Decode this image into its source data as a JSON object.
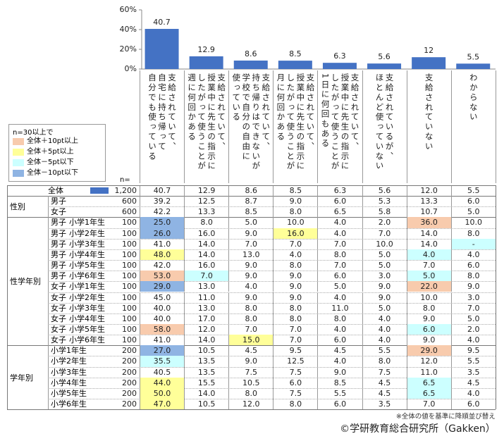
{
  "chart_data": {
    "type": "bar",
    "categories": [
      "支給されていて、\n自宅に持ち帰って\n自分でも使っている",
      "支給されていて、\n授業中に先生の指示に\nしたがって使うことが\n週に何回かある",
      "支給されていて、\n持ち帰りはできないが\n学校で自分の自由に\n使っている",
      "支給されていて、\n授業中に先生の指示に\nしたがって使うことが\n月に何回かある",
      "支給されていて、\n授業中に先生の指示に\nしたがって使うことが\n1日に何回もある",
      "支給されているが、\nほとんど使っていない",
      "支給されていない",
      "わからない"
    ],
    "values": [
      40.7,
      12.9,
      8.6,
      8.5,
      6.3,
      5.6,
      12.0,
      5.5
    ],
    "color": "#4472c4",
    "ylim": [
      0,
      60
    ],
    "yticks": [
      {
        "value": 0,
        "label": "0%"
      },
      {
        "value": 20,
        "label": "20%"
      },
      {
        "value": 40,
        "label": "40%"
      },
      {
        "value": 60,
        "label": "60%"
      }
    ]
  },
  "legend": {
    "title": "n=30以上で",
    "items": [
      {
        "label": "全体＋10pt以上",
        "color": "#f8cbad"
      },
      {
        "label": "全体＋5pt以上",
        "color": "#ffff99"
      },
      {
        "label": "全体－5pt以下",
        "color": "#ccffff"
      },
      {
        "label": "全体－10pt以下",
        "color": "#8fb4e3"
      }
    ]
  },
  "table": {
    "n_header": "n=",
    "total": {
      "label": "全体",
      "n": "1,200",
      "cells": [
        "40.7",
        "12.9",
        "8.6",
        "8.5",
        "6.3",
        "5.6",
        "12.0",
        "5.5"
      ]
    },
    "groups": [
      {
        "label": "性別",
        "rows": [
          {
            "labels": [
              "男子"
            ],
            "n": "600",
            "cells": [
              "39.2",
              "12.5",
              "8.7",
              "9.0",
              "6.0",
              "5.3",
              "13.3",
              "6.0"
            ]
          },
          {
            "labels": [
              "女子"
            ],
            "n": "600",
            "cells": [
              "42.2",
              "13.3",
              "8.5",
              "8.0",
              "6.5",
              "5.8",
              "10.7",
              "5.0"
            ]
          }
        ]
      },
      {
        "label": "性学年別",
        "rows": [
          {
            "labels": [
              "男子",
              "小学1年生"
            ],
            "n": "100",
            "cells": [
              "25.0",
              "8.0",
              "5.0",
              "10.0",
              "4.0",
              "2.0",
              "36.0",
              "10.0"
            ],
            "shade": [
              [
                0,
                3
              ],
              [
                6,
                0
              ]
            ]
          },
          {
            "labels": [
              "男子",
              "小学2年生"
            ],
            "n": "100",
            "cells": [
              "26.0",
              "16.0",
              "9.0",
              "16.0",
              "4.0",
              "7.0",
              "14.0",
              "8.0"
            ],
            "shade": [
              [
                0,
                3
              ],
              [
                3,
                1
              ]
            ]
          },
          {
            "labels": [
              "男子",
              "小学3年生"
            ],
            "n": "100",
            "cells": [
              "41.0",
              "14.0",
              "7.0",
              "7.0",
              "7.0",
              "10.0",
              "14.0",
              "-"
            ],
            "shade": [
              [
                7,
                2
              ]
            ]
          },
          {
            "labels": [
              "男子",
              "小学4年生"
            ],
            "n": "100",
            "cells": [
              "48.0",
              "14.0",
              "13.0",
              "4.0",
              "8.0",
              "5.0",
              "4.0",
              "4.0"
            ],
            "shade": [
              [
                0,
                1
              ],
              [
                6,
                2
              ]
            ]
          },
          {
            "labels": [
              "男子",
              "小学5年生"
            ],
            "n": "100",
            "cells": [
              "42.0",
              "16.0",
              "9.0",
              "8.0",
              "7.0",
              "5.0",
              "7.0",
              "6.0"
            ]
          },
          {
            "labels": [
              "男子",
              "小学6年生"
            ],
            "n": "100",
            "cells": [
              "53.0",
              "7.0",
              "9.0",
              "9.0",
              "6.0",
              "3.0",
              "5.0",
              "8.0"
            ],
            "shade": [
              [
                0,
                0
              ],
              [
                1,
                2
              ],
              [
                6,
                2
              ]
            ]
          },
          {
            "labels": [
              "女子",
              "小学1年生"
            ],
            "n": "100",
            "cells": [
              "29.0",
              "13.0",
              "4.0",
              "9.0",
              "5.0",
              "9.0",
              "22.0",
              "9.0"
            ],
            "shade": [
              [
                0,
                3
              ],
              [
                6,
                0
              ]
            ]
          },
          {
            "labels": [
              "女子",
              "小学2年生"
            ],
            "n": "100",
            "cells": [
              "45.0",
              "11.0",
              "9.0",
              "9.0",
              "4.0",
              "9.0",
              "10.0",
              "3.0"
            ]
          },
          {
            "labels": [
              "女子",
              "小学3年生"
            ],
            "n": "100",
            "cells": [
              "40.0",
              "13.0",
              "8.0",
              "8.0",
              "11.0",
              "5.0",
              "8.0",
              "7.0"
            ]
          },
          {
            "labels": [
              "女子",
              "小学4年生"
            ],
            "n": "100",
            "cells": [
              "40.0",
              "17.0",
              "8.0",
              "8.0",
              "8.0",
              "4.0",
              "9.0",
              "5.0"
            ]
          },
          {
            "labels": [
              "女子",
              "小学5年生"
            ],
            "n": "100",
            "cells": [
              "58.0",
              "12.0",
              "7.0",
              "7.0",
              "4.0",
              "4.0",
              "6.0",
              "2.0"
            ],
            "shade": [
              [
                0,
                0
              ],
              [
                6,
                2
              ]
            ]
          },
          {
            "labels": [
              "女子",
              "小学6年生"
            ],
            "n": "100",
            "cells": [
              "41.0",
              "14.0",
              "15.0",
              "7.0",
              "6.0",
              "4.0",
              "9.0",
              "4.0"
            ],
            "shade": [
              [
                2,
                1
              ]
            ]
          }
        ]
      },
      {
        "label": "学年別",
        "rows": [
          {
            "labels": [
              "小学1年生"
            ],
            "n": "200",
            "cells": [
              "27.0",
              "10.5",
              "4.5",
              "9.5",
              "4.5",
              "5.5",
              "29.0",
              "9.5"
            ],
            "shade": [
              [
                0,
                3
              ],
              [
                6,
                0
              ]
            ]
          },
          {
            "labels": [
              "小学2年生"
            ],
            "n": "200",
            "cells": [
              "35.5",
              "13.5",
              "9.0",
              "12.5",
              "4.0",
              "8.0",
              "12.0",
              "5.5"
            ],
            "shade": [
              [
                0,
                2
              ]
            ]
          },
          {
            "labels": [
              "小学3年生"
            ],
            "n": "200",
            "cells": [
              "40.5",
              "13.5",
              "7.5",
              "7.5",
              "9.0",
              "7.5",
              "11.0",
              "3.5"
            ]
          },
          {
            "labels": [
              "小学4年生"
            ],
            "n": "200",
            "cells": [
              "44.0",
              "15.5",
              "10.5",
              "6.0",
              "8.5",
              "4.5",
              "6.5",
              "4.5"
            ],
            "shade": [
              [
                0,
                1
              ],
              [
                6,
                2
              ]
            ]
          },
          {
            "labels": [
              "小学5年生"
            ],
            "n": "200",
            "cells": [
              "50.0",
              "14.0",
              "8.0",
              "7.5",
              "5.5",
              "4.5",
              "6.5",
              "4.0"
            ],
            "shade": [
              [
                0,
                1
              ],
              [
                6,
                2
              ]
            ]
          },
          {
            "labels": [
              "小学6年生"
            ],
            "n": "200",
            "cells": [
              "47.0",
              "10.5",
              "12.0",
              "8.0",
              "6.0",
              "3.5",
              "7.0",
              "6.0"
            ],
            "shade": [
              [
                0,
                1
              ]
            ]
          }
        ]
      }
    ]
  },
  "footer": {
    "note": "※全体の値を基準に降順並び替え",
    "credit": "©学研教育総合研究所（Gakken）"
  }
}
